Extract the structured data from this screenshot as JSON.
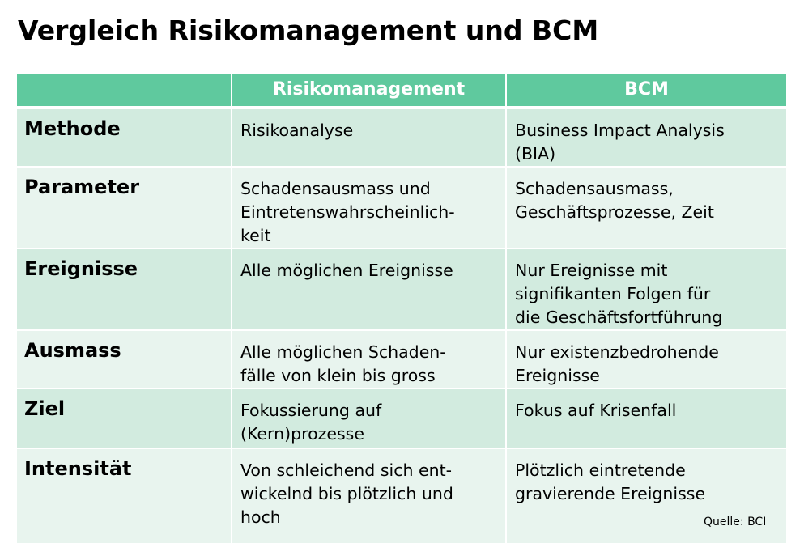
{
  "title": "Vergleich Risikomanagement und BCM",
  "table": {
    "headers": [
      "",
      "Risikomanagement",
      "BCM"
    ],
    "rows": [
      {
        "label": "Methode",
        "risk_lines": [
          "Risikoanalyse"
        ],
        "bcm_lines": [
          "Business Impact Analysis",
          "(BIA)"
        ]
      },
      {
        "label": "Parameter",
        "risk_lines": [
          "Schadensausmass und",
          "Eintretenswahrscheinlich-",
          "keit"
        ],
        "bcm_lines": [
          "Schadensausmass,",
          "Geschäftsprozesse, Zeit"
        ]
      },
      {
        "label": "Ereignisse",
        "risk_lines": [
          "Alle möglichen Ereignisse"
        ],
        "bcm_lines": [
          "Nur Ereignisse mit",
          "signifikanten Folgen für",
          "die Geschäftsfortführung"
        ]
      },
      {
        "label": "Ausmass",
        "risk_lines": [
          "Alle möglichen Schaden-",
          "fälle von klein bis gross"
        ],
        "bcm_lines": [
          "Nur existenzbedrohende",
          "Ereignisse"
        ]
      },
      {
        "label": "Ziel",
        "risk_lines": [
          "Fokussierung auf",
          "(Kern)prozesse"
        ],
        "bcm_lines": [
          "Fokus auf Krisenfall"
        ]
      },
      {
        "label": "Intensität",
        "risk_lines": [
          "Von schleichend sich ent-",
          "wickelnd bis plötzlich und",
          "hoch"
        ],
        "bcm_lines": [
          "Plötzlich eintretende",
          "gravierende Ereignisse"
        ]
      }
    ]
  },
  "source": "Quelle: BCI",
  "colors": {
    "header_bg": "#5fc99e",
    "row_odd_bg": "#d2ebdf",
    "row_even_bg": "#e8f4ee"
  }
}
